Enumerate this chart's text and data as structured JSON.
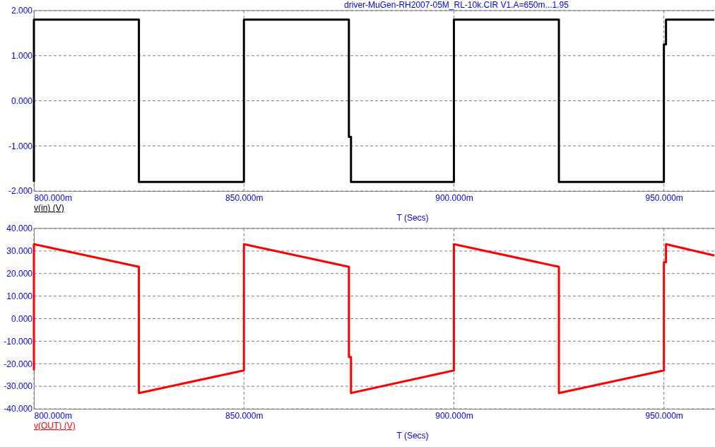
{
  "chart_data": [
    {
      "type": "line",
      "title": "driver-MuGen-RH2007-05M_RL-10k.CIR V1.A=650m...1.95",
      "xlabel": "T (Secs)",
      "legend": "bottom left",
      "grid": true,
      "line_style": "solid",
      "xlim": [
        800,
        962
      ],
      "xticks": [
        {
          "value": 800,
          "label": "800.000m"
        },
        {
          "value": 850,
          "label": "850.000m"
        },
        {
          "value": 900,
          "label": "900.000m"
        },
        {
          "value": 950,
          "label": "950.000m"
        }
      ],
      "ylim": [
        -2,
        2
      ],
      "yticks": [
        {
          "value": -2,
          "label": "-2.000"
        },
        {
          "value": -1,
          "label": "-1.000"
        },
        {
          "value": 0,
          "label": "0.000"
        },
        {
          "value": 1,
          "label": "1.000"
        },
        {
          "value": 2,
          "label": "2.000"
        }
      ],
      "series": [
        {
          "name": "v(in) (V)",
          "color": "#000000",
          "x": [
            800,
            800,
            825,
            825,
            850,
            850,
            875,
            875,
            875.5,
            875.5,
            900,
            900,
            925,
            925,
            950,
            950,
            950.5,
            950.5,
            962
          ],
          "values": [
            -1.8,
            1.8,
            1.8,
            -1.8,
            -1.8,
            1.8,
            1.8,
            -0.8,
            -0.8,
            -1.8,
            -1.8,
            1.8,
            1.8,
            -1.8,
            -1.8,
            1.25,
            1.25,
            1.8,
            1.8
          ]
        }
      ]
    },
    {
      "type": "line",
      "xlabel": "T (Secs)",
      "legend": "bottom left",
      "grid": true,
      "line_style": "solid",
      "xlim": [
        800,
        962
      ],
      "xticks": [
        {
          "value": 800,
          "label": "800.000m"
        },
        {
          "value": 850,
          "label": "850.000m"
        },
        {
          "value": 900,
          "label": "900.000m"
        },
        {
          "value": 950,
          "label": "950.000m"
        }
      ],
      "ylim": [
        -40,
        40
      ],
      "yticks": [
        {
          "value": -40,
          "label": "-40.000"
        },
        {
          "value": -30,
          "label": "-30.000"
        },
        {
          "value": -20,
          "label": "-20.000"
        },
        {
          "value": -10,
          "label": "-10.000"
        },
        {
          "value": 0,
          "label": "0.000"
        },
        {
          "value": 10,
          "label": "10.000"
        },
        {
          "value": 20,
          "label": "20.000"
        },
        {
          "value": 30,
          "label": "30.000"
        },
        {
          "value": 40,
          "label": "40.000"
        }
      ],
      "series": [
        {
          "name": "v(OUT) (V)",
          "color": "#ff0000",
          "x": [
            800,
            800,
            825,
            825,
            850,
            850,
            875,
            875,
            875.5,
            875.5,
            900,
            900,
            925,
            925,
            950,
            950,
            950.5,
            950.5,
            962
          ],
          "values": [
            -23,
            33,
            23,
            -33,
            -23,
            33,
            23,
            -17,
            -17,
            -33,
            -23,
            33,
            23,
            -33,
            -23,
            25,
            25,
            33,
            28
          ]
        }
      ]
    }
  ]
}
